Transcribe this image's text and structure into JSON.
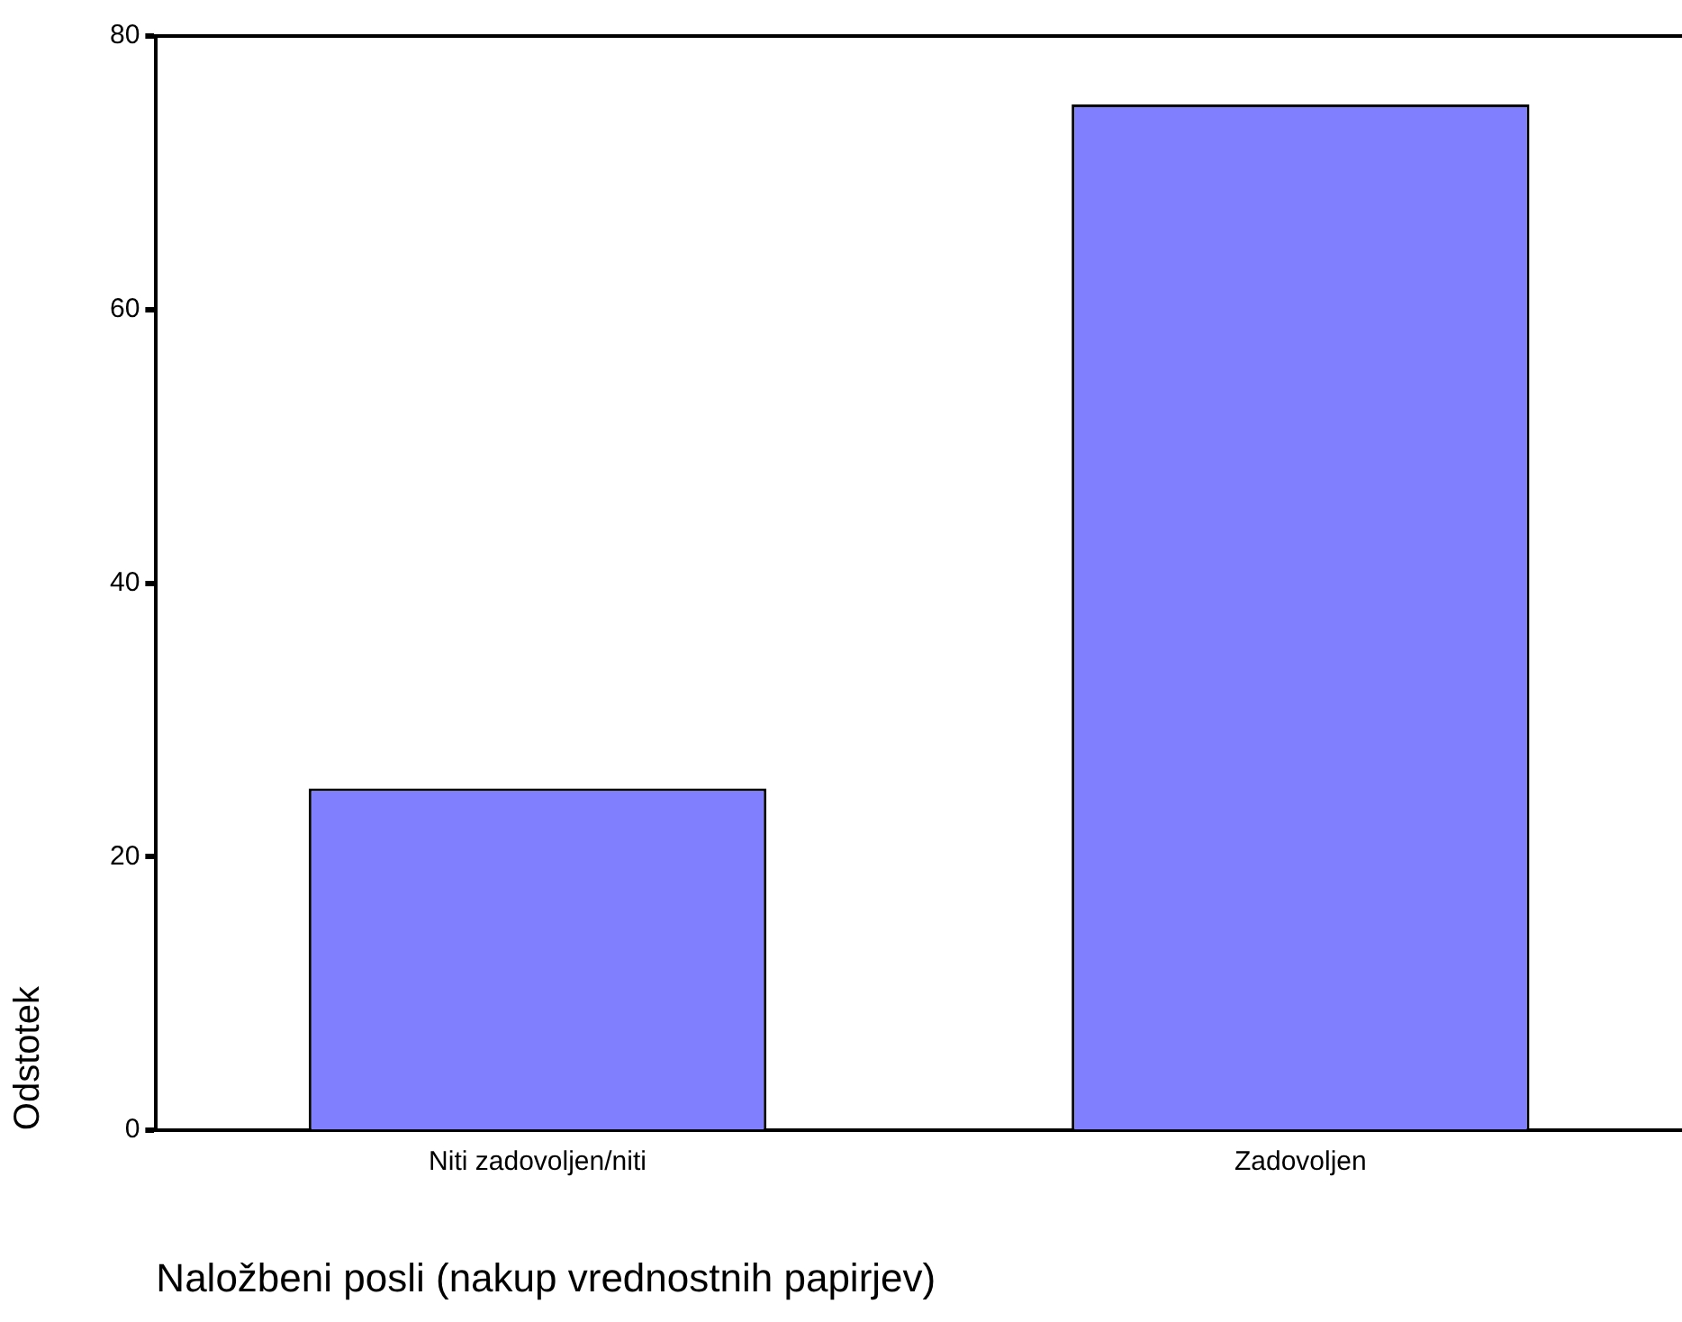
{
  "chart_data": {
    "type": "bar",
    "categories": [
      "Niti zadovoljen/niti",
      "Zadovoljen"
    ],
    "values": [
      25,
      75
    ],
    "color": "#8080ff",
    "ylim": [
      0,
      80
    ],
    "yticks": [
      0,
      20,
      40,
      60,
      80
    ],
    "xlabel": "Naložbeni posli (nakup vrednostnih papirjev)",
    "ylabel": "Odstotek",
    "grid": false,
    "legend": false
  }
}
